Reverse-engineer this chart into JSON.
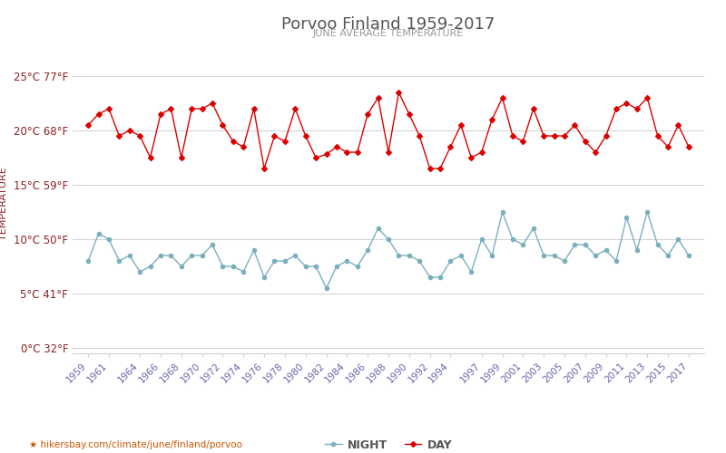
{
  "title": "Porvoo Finland 1959-2017",
  "subtitle": "JUNE AVERAGE TEMPERATURE",
  "ylabel": "TEMPERATURE",
  "xlabel_url": "hikersbay.com/climate/june/finland/porvoo",
  "years": [
    1959,
    1960,
    1961,
    1962,
    1963,
    1964,
    1965,
    1966,
    1967,
    1968,
    1969,
    1970,
    1971,
    1972,
    1973,
    1974,
    1975,
    1976,
    1977,
    1978,
    1979,
    1980,
    1981,
    1982,
    1983,
    1984,
    1985,
    1986,
    1987,
    1988,
    1989,
    1990,
    1991,
    1992,
    1993,
    1994,
    1995,
    1996,
    1997,
    1998,
    1999,
    2000,
    2001,
    2002,
    2003,
    2004,
    2005,
    2006,
    2007,
    2008,
    2009,
    2010,
    2011,
    2012,
    2013,
    2014,
    2015,
    2016,
    2017
  ],
  "day_temps": [
    20.5,
    21.5,
    22.0,
    19.5,
    20.0,
    19.5,
    17.5,
    21.5,
    22.0,
    17.5,
    22.0,
    22.0,
    22.5,
    20.5,
    19.0,
    18.5,
    22.0,
    16.5,
    19.5,
    19.0,
    22.0,
    19.5,
    17.5,
    17.8,
    18.5,
    18.0,
    18.0,
    21.5,
    23.0,
    18.0,
    23.5,
    21.5,
    19.5,
    16.5,
    16.5,
    18.5,
    20.5,
    17.5,
    18.0,
    21.0,
    23.0,
    19.5,
    19.0,
    22.0,
    19.5,
    19.5,
    19.5,
    20.5,
    19.0,
    18.0,
    19.5,
    22.0,
    22.5,
    22.0,
    23.0,
    19.5,
    18.5,
    20.5,
    18.5
  ],
  "night_temps": [
    8.0,
    10.5,
    10.0,
    8.0,
    8.5,
    7.0,
    7.5,
    8.5,
    8.5,
    7.5,
    8.5,
    8.5,
    9.5,
    7.5,
    7.5,
    7.0,
    9.0,
    6.5,
    8.0,
    8.0,
    8.5,
    7.5,
    7.5,
    5.5,
    7.5,
    8.0,
    7.5,
    9.0,
    11.0,
    10.0,
    8.5,
    8.5,
    8.0,
    6.5,
    6.5,
    8.0,
    8.5,
    7.0,
    10.0,
    8.5,
    12.5,
    10.0,
    9.5,
    11.0,
    8.5,
    8.5,
    8.0,
    9.5,
    9.5,
    8.5,
    9.0,
    8.0,
    12.0,
    9.0,
    12.5,
    9.5,
    8.5,
    10.0,
    8.5
  ],
  "day_color": "#dd0000",
  "night_color": "#7ab0be",
  "background_color": "#ffffff",
  "grid_color": "#d0d0d0",
  "title_color": "#555555",
  "subtitle_color": "#999999",
  "axis_label_color": "#8b2020",
  "tick_label_color": "#6666aa",
  "yticks_c": [
    0,
    5,
    10,
    15,
    20,
    25
  ],
  "yticks_f": [
    32,
    41,
    50,
    59,
    68,
    77
  ],
  "ylim": [
    -0.5,
    27
  ],
  "legend_night_label": "NIGHT",
  "legend_day_label": "DAY",
  "x_ticks": [
    1959,
    1961,
    1964,
    1966,
    1968,
    1970,
    1972,
    1974,
    1976,
    1978,
    1980,
    1982,
    1984,
    1986,
    1988,
    1990,
    1992,
    1994,
    1997,
    1999,
    2001,
    2003,
    2005,
    2007,
    2009,
    2011,
    2013,
    2015,
    2017
  ]
}
